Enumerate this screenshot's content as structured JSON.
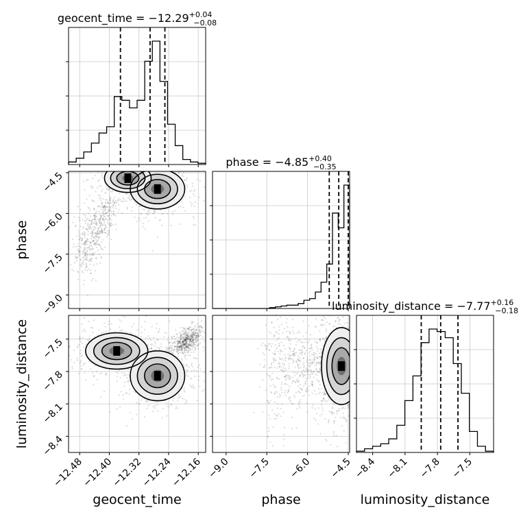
{
  "chart_data": {
    "type": "corner",
    "parameters": [
      {
        "name": "geocent_time",
        "label": "geocent_time",
        "title_label": "geocent_time",
        "median": "−12.29",
        "plus": "+0.04",
        "minus": "−0.08",
        "range": [
          -12.51,
          -12.14
        ],
        "ticks": [
          -12.48,
          -12.4,
          -12.32,
          -12.24,
          -12.16
        ],
        "tick_labels": [
          "−12.48",
          "−12.40",
          "−12.32",
          "−12.24",
          "−12.16"
        ],
        "quantiles": [
          -12.37,
          -12.29,
          -12.25
        ],
        "hist_edges": [
          -12.51,
          -12.14
        ],
        "hist_counts": [
          0.02,
          0.05,
          0.1,
          0.17,
          0.25,
          0.3,
          0.54,
          0.51,
          0.45,
          0.51,
          0.82,
          0.98,
          0.66,
          0.32,
          0.15,
          0.04,
          0.02,
          0.01
        ]
      },
      {
        "name": "phase",
        "label": "phase",
        "title_label": "phase",
        "median": "−4.85",
        "plus": "+0.40",
        "minus": "−0.35",
        "range": [
          -9.5,
          -4.45
        ],
        "ticks": [
          -9.0,
          -7.5,
          -6.0,
          -4.5
        ],
        "tick_labels": [
          "−9.0",
          "−7.5",
          "−6.0",
          "−4.5"
        ],
        "quantiles": [
          -5.2,
          -4.85,
          -4.5
        ],
        "hist_edges": [
          -9.5,
          -4.45
        ],
        "hist_counts": [
          0,
          0,
          0,
          0,
          0,
          0,
          0,
          0,
          0,
          0,
          0.005,
          0.01,
          0.015,
          0.02,
          0.02,
          0.03,
          0.05,
          0.06,
          0.1,
          0.16,
          0.27,
          0.58,
          0.49,
          0.75
        ]
      },
      {
        "name": "luminosity_distance",
        "label": "luminosity_distance",
        "title_label": "luminosity_distance",
        "median": "−7.77",
        "plus": "+0.16",
        "minus": "−0.18",
        "range": [
          -8.55,
          -7.28
        ],
        "ticks": [
          -8.4,
          -8.1,
          -7.8,
          -7.5
        ],
        "tick_labels": [
          "−8.4",
          "−8.1",
          "−7.8",
          "−7.5"
        ],
        "quantiles": [
          -7.95,
          -7.77,
          -7.61
        ],
        "hist_edges": [
          -8.55,
          -7.28
        ],
        "hist_counts": [
          0.01,
          0.03,
          0.05,
          0.07,
          0.11,
          0.22,
          0.42,
          0.62,
          0.89,
          1.0,
          0.98,
          0.93,
          0.72,
          0.48,
          0.17,
          0.05,
          0.01
        ]
      }
    ],
    "pairs": [
      {
        "x": "geocent_time",
        "y": "phase",
        "cores": [
          {
            "cx": -12.27,
            "cy": -5.1,
            "sx": 0.035,
            "sy": 0.35,
            "w": 0.6
          },
          {
            "cx": -12.35,
            "cy": -4.7,
            "sx": 0.03,
            "sy": 0.25,
            "w": 0.4
          }
        ],
        "tail": {
          "from": [
            -12.38,
            -5.5
          ],
          "to": [
            -12.48,
            -7.4
          ],
          "spread": 0.5
        }
      },
      {
        "x": "geocent_time",
        "y": "luminosity_distance",
        "cores": [
          {
            "cx": -12.38,
            "cy": -7.61,
            "sx": 0.04,
            "sy": 0.08,
            "w": 0.45
          },
          {
            "cx": -12.27,
            "cy": -7.84,
            "sx": 0.035,
            "sy": 0.11,
            "w": 0.55
          }
        ],
        "tail": {
          "from": [
            -12.22,
            -7.6
          ],
          "to": [
            -12.17,
            -7.45
          ],
          "spread": 0.05
        }
      },
      {
        "x": "phase",
        "y": "luminosity_distance",
        "cores": [
          {
            "cx": -4.75,
            "cy": -7.75,
            "sx": 0.35,
            "sy": 0.17,
            "w": 1.0
          }
        ],
        "tail": {
          "from": [
            -5.3,
            -7.7
          ],
          "to": [
            -7.5,
            -7.8
          ],
          "spread": 0.25
        }
      }
    ]
  }
}
